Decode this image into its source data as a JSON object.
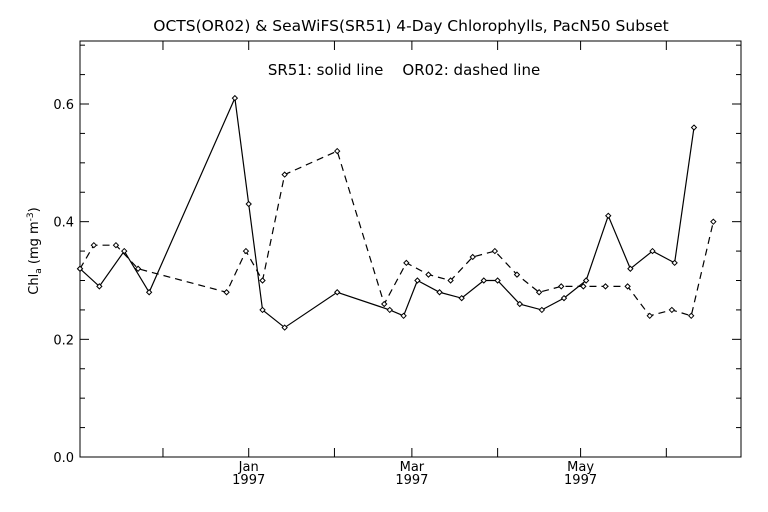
{
  "chart_data": {
    "type": "line",
    "title": "OCTS(OR02) & SeaWiFS(SR51) 4-Day Chlorophylls, PacN50 Subset",
    "annotation": "SR51: solid line    OR02: dashed line",
    "ylabel": {
      "main": "Chl",
      "sub": "a",
      "units_open": " (mg m",
      "sup": "-3",
      "units_close": ")"
    },
    "ylim": [
      0.0,
      0.72
    ],
    "yticks": [
      0.0,
      0.2,
      0.4,
      0.6
    ],
    "ytick_labels": [
      "0.0",
      "0.2",
      "0.4",
      "0.6"
    ],
    "xlim": [
      "1996-11-01",
      "1997-06-28"
    ],
    "xtick_dates": [
      "1996-12-01",
      "1997-01-01",
      "1997-02-01",
      "1997-03-01",
      "1997-04-01",
      "1997-05-01",
      "1997-06-01"
    ],
    "xlabels": [
      {
        "date": "1997-01-01",
        "month": "Jan",
        "year": "1997"
      },
      {
        "date": "1997-03-01",
        "month": "Mar",
        "year": "1997"
      },
      {
        "date": "1997-05-01",
        "month": "May",
        "year": "1997"
      }
    ],
    "grid": false,
    "series": [
      {
        "name": "SR51",
        "style": "solid",
        "color": "#000000",
        "points": [
          {
            "x": "1996-11-01",
            "y": 0.32
          },
          {
            "x": "1996-11-08",
            "y": 0.29
          },
          {
            "x": "1996-11-17",
            "y": 0.35
          },
          {
            "x": "1996-11-26",
            "y": 0.28
          },
          {
            "x": "1996-12-27",
            "y": 0.61
          },
          {
            "x": "1997-01-01",
            "y": 0.43
          },
          {
            "x": "1997-01-06",
            "y": 0.25
          },
          {
            "x": "1997-01-14",
            "y": 0.22
          },
          {
            "x": "1997-02-02",
            "y": 0.28
          },
          {
            "x": "1997-02-21",
            "y": 0.25
          },
          {
            "x": "1997-02-26",
            "y": 0.24
          },
          {
            "x": "1997-03-03",
            "y": 0.3
          },
          {
            "x": "1997-03-11",
            "y": 0.28
          },
          {
            "x": "1997-03-19",
            "y": 0.27
          },
          {
            "x": "1997-03-27",
            "y": 0.3
          },
          {
            "x": "1997-04-01",
            "y": 0.3
          },
          {
            "x": "1997-04-09",
            "y": 0.26
          },
          {
            "x": "1997-04-17",
            "y": 0.25
          },
          {
            "x": "1997-04-25",
            "y": 0.27
          },
          {
            "x": "1997-05-03",
            "y": 0.3
          },
          {
            "x": "1997-05-11",
            "y": 0.41
          },
          {
            "x": "1997-05-19",
            "y": 0.32
          },
          {
            "x": "1997-05-27",
            "y": 0.35
          },
          {
            "x": "1997-06-04",
            "y": 0.33
          },
          {
            "x": "1997-06-11",
            "y": 0.56
          }
        ]
      },
      {
        "name": "OR02",
        "style": "dashed",
        "color": "#000000",
        "points": [
          {
            "x": "1996-11-01",
            "y": 0.32
          },
          {
            "x": "1996-11-06",
            "y": 0.36
          },
          {
            "x": "1996-11-14",
            "y": 0.36
          },
          {
            "x": "1996-11-22",
            "y": 0.32
          },
          {
            "x": "1996-12-24",
            "y": 0.28
          },
          {
            "x": "1996-12-31",
            "y": 0.35
          },
          {
            "x": "1997-01-06",
            "y": 0.3
          },
          {
            "x": "1997-01-14",
            "y": 0.48
          },
          {
            "x": "1997-02-02",
            "y": 0.52
          },
          {
            "x": "1997-02-19",
            "y": 0.26
          },
          {
            "x": "1997-02-27",
            "y": 0.33
          },
          {
            "x": "1997-03-07",
            "y": 0.31
          },
          {
            "x": "1997-03-15",
            "y": 0.3
          },
          {
            "x": "1997-03-23",
            "y": 0.34
          },
          {
            "x": "1997-03-31",
            "y": 0.35
          },
          {
            "x": "1997-04-08",
            "y": 0.31
          },
          {
            "x": "1997-04-16",
            "y": 0.28
          },
          {
            "x": "1997-04-24",
            "y": 0.29
          },
          {
            "x": "1997-05-02",
            "y": 0.29
          },
          {
            "x": "1997-05-10",
            "y": 0.29
          },
          {
            "x": "1997-05-18",
            "y": 0.29
          },
          {
            "x": "1997-05-26",
            "y": 0.24
          },
          {
            "x": "1997-06-03",
            "y": 0.25
          },
          {
            "x": "1997-06-10",
            "y": 0.24
          },
          {
            "x": "1997-06-18",
            "y": 0.4
          }
        ]
      }
    ]
  }
}
